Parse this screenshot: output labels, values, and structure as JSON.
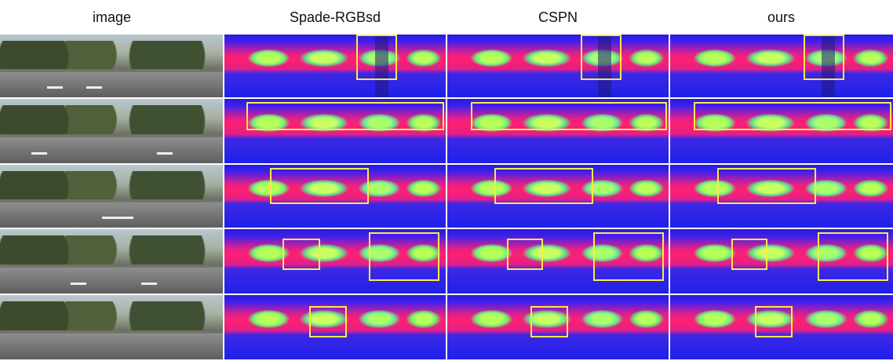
{
  "headers": {
    "image": "image",
    "spade": "Spade-RGBsd",
    "cspn": "CSPN",
    "ours": "ours"
  },
  "colors": {
    "box": "#ffe94a",
    "depth_far": "#2a1ad8",
    "depth_mid": "#ff1f70",
    "depth_near": "#b6ff5a"
  },
  "rows": 5
}
